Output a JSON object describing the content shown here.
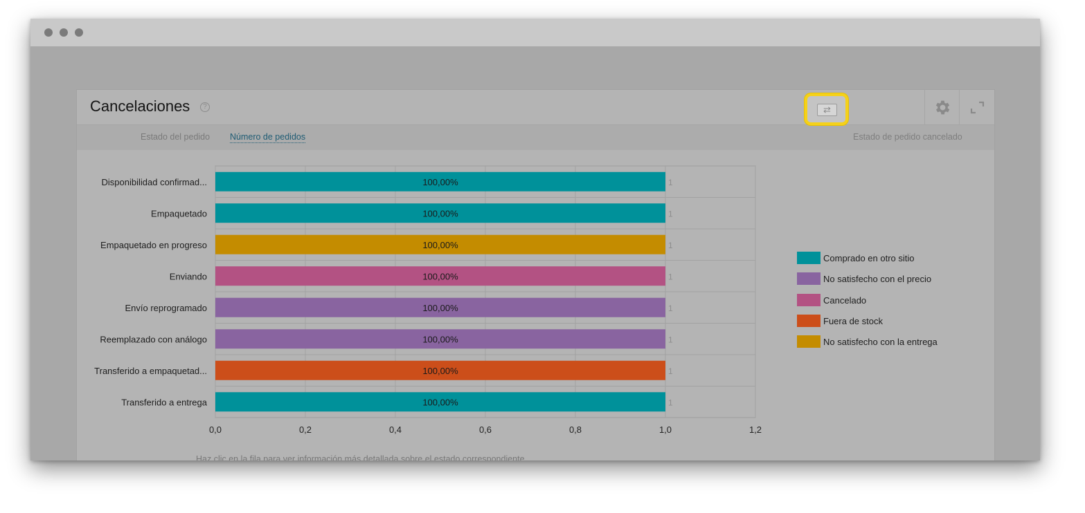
{
  "widget": {
    "title": "Cancelaciones",
    "help_icon": "question-circle-icon",
    "gear_icon": "gear-icon",
    "expand_icon": "expand-icon"
  },
  "tabs": {
    "status_label": "Estado del pedido",
    "number_label": "Número de pedidos",
    "toggle_icon": "swap-arrows-icon",
    "cancel_label": "Estado de pedido cancelado"
  },
  "footnote": "Haz clic en la fila para ver información más detallada sobre el estado correspondiente",
  "chart_data": {
    "type": "bar",
    "orientation": "horizontal",
    "categories": [
      "Disponibilidad confirmad...",
      "Empaquetado",
      "Empaquetado en progreso",
      "Enviando",
      "Envío reprogramado",
      "Reemplazado con análogo",
      "Transferido a empaquetad...",
      "Transferido a entrega"
    ],
    "values": [
      1,
      1,
      1,
      1,
      1,
      1,
      1,
      1
    ],
    "bar_labels": [
      "100,00%",
      "100,00%",
      "100,00%",
      "100,00%",
      "100,00%",
      "100,00%",
      "100,00%",
      "100,00%"
    ],
    "end_labels": [
      "1",
      "1",
      "1",
      "1",
      "1",
      "1",
      "1",
      "1"
    ],
    "bar_series": [
      "Comprado en otro sitio",
      "Comprado en otro sitio",
      "No satisfecho con la entrega",
      "Cancelado",
      "No satisfecho con el precio",
      "No satisfecho con el precio",
      "Fuera de stock",
      "Comprado en otro sitio"
    ],
    "xlim": [
      0,
      1.2
    ],
    "x_ticks": [
      0,
      0.2,
      0.4,
      0.6,
      0.8,
      1.0,
      1.2
    ],
    "x_tick_labels": [
      "0,0",
      "0,2",
      "0,4",
      "0,6",
      "0,8",
      "1,0",
      "1,2"
    ],
    "grid": true,
    "legend_position": "right",
    "legend": [
      {
        "name": "Comprado en otro sitio",
        "color": "#00919a"
      },
      {
        "name": "No satisfecho con el precio",
        "color": "#8964a0"
      },
      {
        "name": "Cancelado",
        "color": "#b35283"
      },
      {
        "name": "Fuera de stock",
        "color": "#cc4e1a"
      },
      {
        "name": "No satisfecho con la entrega",
        "color": "#c48c00"
      }
    ]
  }
}
